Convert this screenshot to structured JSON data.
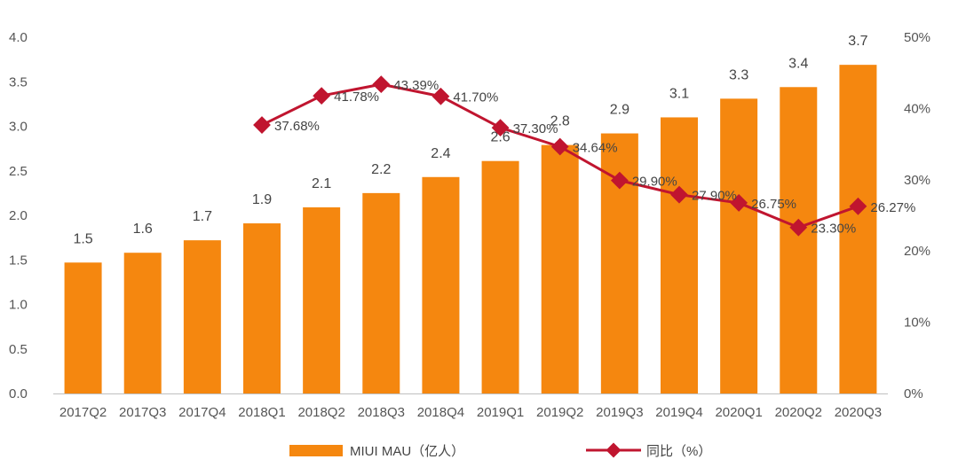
{
  "chart_data": {
    "type": "bar",
    "categories": [
      "2017Q2",
      "2017Q3",
      "2017Q4",
      "2018Q1",
      "2018Q2",
      "2018Q3",
      "2018Q4",
      "2019Q1",
      "2019Q2",
      "2019Q3",
      "2019Q4",
      "2020Q1",
      "2020Q2",
      "2020Q3"
    ],
    "series": [
      {
        "name": "MIUI MAU（亿人）",
        "kind": "bar",
        "axis": "left",
        "color": "#F5870F",
        "values": [
          1.47,
          1.58,
          1.72,
          1.91,
          2.09,
          2.25,
          2.43,
          2.61,
          2.79,
          2.92,
          3.1,
          3.31,
          3.44,
          3.69
        ],
        "labels": [
          "1.5",
          "1.6",
          "1.7",
          "1.9",
          "2.1",
          "2.2",
          "2.4",
          "2.6",
          "2.8",
          "2.9",
          "3.1",
          "3.3",
          "3.4",
          "3.7"
        ]
      },
      {
        "name": "同比（%）",
        "kind": "line",
        "axis": "right",
        "color": "#C0152F",
        "values": [
          null,
          null,
          null,
          37.68,
          41.78,
          43.39,
          41.7,
          37.3,
          34.64,
          29.9,
          27.9,
          26.75,
          23.3,
          26.27
        ],
        "labels": [
          "",
          "",
          "",
          "37.68%",
          "41.78%",
          "43.39%",
          "41.70%",
          "37.30%",
          "34.64%",
          "29.90%",
          "27.90%",
          "26.75%",
          "23.30%",
          "26.27%"
        ]
      }
    ],
    "y_left": {
      "range": [
        0,
        4.0
      ],
      "ticks": [
        "0.0",
        "0.5",
        "1.0",
        "1.5",
        "2.0",
        "2.5",
        "3.0",
        "3.5",
        "4.0"
      ]
    },
    "y_right": {
      "range": [
        0,
        50
      ],
      "ticks": [
        "0%",
        "10%",
        "20%",
        "30%",
        "40%",
        "50%"
      ]
    },
    "title": "",
    "xlabel": "",
    "ylabel": "",
    "grid": false,
    "legend": "bottom",
    "legend_items": [
      "MIUI MAU（亿人）",
      "同比（%）"
    ]
  }
}
